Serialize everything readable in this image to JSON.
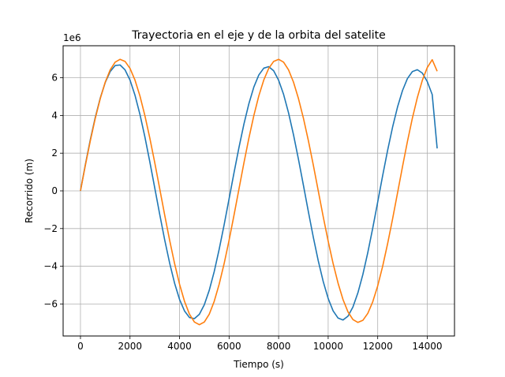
{
  "chart_data": {
    "type": "line",
    "title": "Trayectoria en el eje y de la orbita del satelite",
    "xlabel": "Tiempo (s)",
    "ylabel": "Recorrido (m)",
    "y_offset_label": "1e6",
    "xlim": [
      -700,
      15100
    ],
    "ylim": [
      -7.7,
      7.7
    ],
    "xticks": [
      0,
      2000,
      4000,
      6000,
      8000,
      10000,
      12000,
      14000
    ],
    "xtick_labels": [
      "0",
      "2000",
      "4000",
      "6000",
      "8000",
      "10000",
      "12000",
      "14000"
    ],
    "yticks": [
      -6,
      -4,
      -2,
      0,
      2,
      4,
      6
    ],
    "ytick_labels": [
      "−6",
      "−4",
      "−2",
      "0",
      "2",
      "4",
      "6"
    ],
    "grid": true,
    "y_units": "x 1e6 m",
    "series": [
      {
        "color": "#1f77b4",
        "x": [
          0,
          200,
          400,
          600,
          800,
          1000,
          1200,
          1400,
          1600,
          1800,
          2000,
          2200,
          2400,
          2600,
          2800,
          3000,
          3200,
          3400,
          3600,
          3800,
          4000,
          4200,
          4400,
          4600,
          4800,
          5000,
          5200,
          5400,
          5600,
          5800,
          6000,
          6200,
          6400,
          6600,
          6800,
          7000,
          7200,
          7400,
          7600,
          7800,
          8000,
          8200,
          8400,
          8600,
          8800,
          9000,
          9200,
          9400,
          9600,
          9800,
          10000,
          10200,
          10400,
          10600,
          10800,
          11000,
          11200,
          11400,
          11600,
          11800,
          12000,
          12200,
          12400,
          12600,
          12800,
          13000,
          13200,
          13400,
          13600,
          13800,
          14000,
          14200,
          14400
        ],
        "y": [
          0.0,
          1.41,
          2.73,
          3.91,
          4.93,
          5.75,
          6.33,
          6.65,
          6.68,
          6.42,
          5.88,
          5.08,
          4.06,
          2.87,
          1.54,
          0.15,
          -1.25,
          -2.6,
          -3.83,
          -4.9,
          -5.76,
          -6.37,
          -6.72,
          -6.78,
          -6.55,
          -6.04,
          -5.27,
          -4.28,
          -3.1,
          -1.8,
          -0.42,
          0.97,
          2.31,
          3.55,
          4.63,
          5.51,
          6.15,
          6.51,
          6.59,
          6.37,
          5.87,
          5.12,
          4.14,
          2.98,
          1.68,
          0.3,
          -1.1,
          -2.46,
          -3.71,
          -4.81,
          -5.71,
          -6.37,
          -6.75,
          -6.85,
          -6.65,
          -6.16,
          -5.41,
          -4.44,
          -3.27,
          -1.97,
          -0.59,
          0.81,
          2.15,
          3.38,
          4.45,
          5.32,
          5.96,
          6.33,
          6.43,
          6.25,
          5.8,
          5.11,
          2.25
        ]
      },
      {
        "color": "#ff7f0e",
        "x": [
          0,
          200,
          400,
          600,
          800,
          1000,
          1200,
          1400,
          1600,
          1800,
          2000,
          2200,
          2400,
          2600,
          2800,
          3000,
          3200,
          3400,
          3600,
          3800,
          4000,
          4200,
          4400,
          4600,
          4800,
          5000,
          5200,
          5400,
          5600,
          5800,
          6000,
          6200,
          6400,
          6600,
          6800,
          7000,
          7200,
          7400,
          7600,
          7800,
          8000,
          8200,
          8400,
          8600,
          8800,
          9000,
          9200,
          9400,
          9600,
          9800,
          10000,
          10200,
          10400,
          10600,
          10800,
          11000,
          11200,
          11400,
          11600,
          11800,
          12000,
          12200,
          12400,
          12600,
          12800,
          13000,
          13200,
          13400,
          13600,
          13800,
          14000,
          14200,
          14400
        ],
        "y": [
          0.0,
          1.37,
          2.67,
          3.86,
          4.9,
          5.77,
          6.42,
          6.83,
          6.98,
          6.87,
          6.5,
          5.88,
          5.04,
          4.0,
          2.8,
          1.49,
          0.11,
          -1.28,
          -2.62,
          -3.86,
          -4.95,
          -5.86,
          -6.54,
          -6.96,
          -7.1,
          -6.96,
          -6.54,
          -5.86,
          -4.95,
          -3.86,
          -2.62,
          -1.28,
          0.11,
          1.49,
          2.8,
          4.0,
          5.04,
          5.88,
          6.5,
          6.87,
          6.98,
          6.83,
          6.42,
          5.77,
          4.9,
          3.86,
          2.67,
          1.37,
          0.0,
          -1.37,
          -2.67,
          -3.86,
          -4.9,
          -5.77,
          -6.42,
          -6.83,
          -6.98,
          -6.87,
          -6.5,
          -5.88,
          -5.04,
          -4.0,
          -2.8,
          -1.49,
          -0.11,
          1.28,
          2.62,
          3.86,
          4.95,
          5.86,
          6.54,
          6.96,
          6.35
        ]
      }
    ]
  }
}
